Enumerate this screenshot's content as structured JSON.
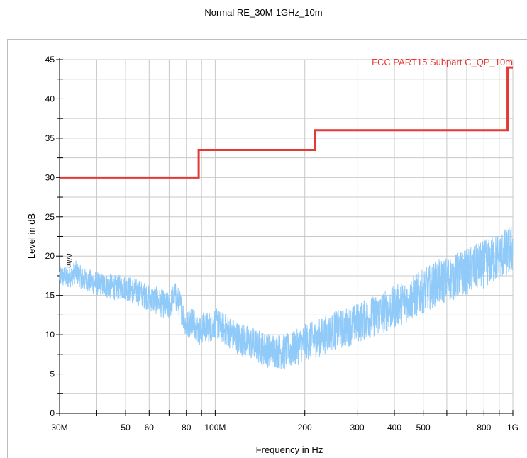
{
  "chart_data": {
    "type": "line",
    "title": "Normal RE_30M-1GHz_10m",
    "xlabel": "Frequency in Hz",
    "ylabel": "Level in dB",
    "ylabel_unit_fragment": "µV/m",
    "x_scale": "log",
    "xlim": [
      30000000,
      1000000000
    ],
    "ylim": [
      0,
      45
    ],
    "grid": true,
    "x_ticks": [
      {
        "value": 30000000,
        "label": "30M"
      },
      {
        "value": 50000000,
        "label": "50"
      },
      {
        "value": 60000000,
        "label": "60"
      },
      {
        "value": 80000000,
        "label": "80"
      },
      {
        "value": 100000000,
        "label": "100M"
      },
      {
        "value": 200000000,
        "label": "200"
      },
      {
        "value": 300000000,
        "label": "300"
      },
      {
        "value": 400000000,
        "label": "400"
      },
      {
        "value": 500000000,
        "label": "500"
      },
      {
        "value": 800000000,
        "label": "800"
      },
      {
        "value": 1000000000,
        "label": "1G"
      }
    ],
    "x_grid_values": [
      30000000,
      40000000,
      50000000,
      60000000,
      70000000,
      80000000,
      90000000,
      100000000,
      200000000,
      300000000,
      400000000,
      500000000,
      600000000,
      700000000,
      800000000,
      900000000,
      1000000000
    ],
    "y_ticks": [
      0,
      5,
      10,
      15,
      20,
      25,
      30,
      35,
      40,
      45
    ],
    "series": [
      {
        "name": "FCC PART15 Subpart C_QP_10m",
        "color": "#e53935",
        "x": [
          30000000,
          88000000,
          88000000,
          216000000,
          216000000,
          960000000,
          960000000,
          1000000000
        ],
        "y": [
          30,
          30,
          33.5,
          33.5,
          36,
          36,
          44,
          44
        ]
      },
      {
        "name": "",
        "color": "#90caf9",
        "x": [
          30000000,
          32000000,
          34000000,
          36000000,
          38000000,
          40000000,
          43000000,
          46000000,
          50000000,
          54000000,
          58000000,
          62000000,
          66000000,
          70000000,
          73000000,
          76000000,
          80000000,
          84000000,
          88000000,
          92000000,
          96000000,
          100000000,
          110000000,
          120000000,
          130000000,
          140000000,
          150000000,
          160000000,
          170000000,
          180000000,
          190000000,
          200000000,
          220000000,
          250000000,
          280000000,
          300000000,
          350000000,
          400000000,
          450000000,
          500000000,
          550000000,
          600000000,
          650000000,
          700000000,
          750000000,
          800000000,
          850000000,
          900000000,
          950000000,
          1000000000
        ],
        "y": [
          17.5,
          17.2,
          18,
          17,
          16.8,
          16.5,
          16.2,
          16,
          16,
          15.5,
          15,
          14.5,
          14,
          13.5,
          15,
          14,
          11,
          12,
          10.5,
          11,
          11,
          11.5,
          10.5,
          9.5,
          9,
          8.5,
          8,
          8,
          7.8,
          8,
          8.5,
          9,
          9.5,
          10.5,
          11,
          11.5,
          12.5,
          13.5,
          14.5,
          15.5,
          16.5,
          17,
          17.5,
          18,
          18.5,
          19,
          19.5,
          20,
          20.5,
          21
        ]
      }
    ]
  }
}
